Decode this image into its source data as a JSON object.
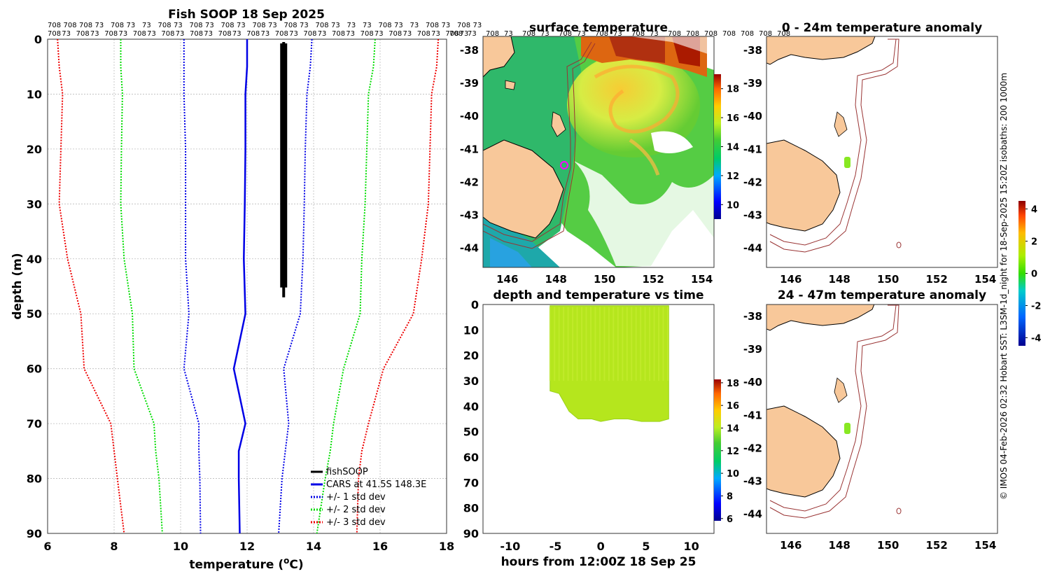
{
  "figure": {
    "credit": "© IMOS 04-Feb-2026 02:32 Hobart SST: L3SM-1d_night for 18-Sep-2025 15:20Z isobaths: 200  1000m"
  },
  "chart_data": [
    {
      "id": "profile",
      "type": "line",
      "title": "Fish SOOP 18 Sep 2025",
      "xlabel": "temperature (",
      "xlabel_sup": "o",
      "xlabel_tail": "C)",
      "ylabel": "depth (m)",
      "xlim": [
        6,
        18
      ],
      "ylim": [
        0,
        90
      ],
      "xticks": [
        6,
        8,
        10,
        12,
        14,
        16,
        18
      ],
      "yticks": [
        0,
        10,
        20,
        30,
        40,
        50,
        60,
        70,
        80,
        90
      ],
      "grid": true,
      "top_row1": [
        "708",
        "708",
        "708",
        "73",
        "708",
        "73",
        "73",
        "708",
        "73",
        "708",
        "73",
        "708",
        "73",
        "708",
        "73",
        "708",
        "73",
        "708",
        "73",
        "73",
        "73",
        "708",
        "73",
        "73",
        "708",
        "73",
        "708",
        "73"
      ],
      "top_row2": [
        "708",
        "73",
        "708",
        "73",
        "708",
        "73",
        "708",
        "73",
        "708",
        "73",
        "708",
        "73",
        "708",
        "73",
        "708",
        "73",
        "708",
        "73",
        "708",
        "73",
        "708",
        "73",
        "708",
        "73",
        "708",
        "73",
        "708",
        "73",
        "708",
        "73"
      ],
      "depths": [
        0,
        5,
        10,
        20,
        30,
        40,
        50,
        60,
        70,
        75,
        80,
        90
      ],
      "series": [
        {
          "name": "fishSOOP",
          "color": "#000000",
          "style": "solid-thick",
          "depths": [
            0,
            47
          ],
          "temps": [
            13.1,
            13.1
          ]
        },
        {
          "name": "CARS at 41.5S 148.3E",
          "color": "#0000e6",
          "style": "solid",
          "temps": [
            12.0,
            12.0,
            11.95,
            11.95,
            11.93,
            11.9,
            11.95,
            11.6,
            11.95,
            11.75,
            11.75,
            11.78
          ]
        },
        {
          "name": "+/- 1 std dev",
          "color": "#0000e6",
          "style": "dotted",
          "temps": [
            10.1,
            10.1,
            10.1,
            10.15,
            10.15,
            10.15,
            10.25,
            10.1,
            10.55,
            10.55,
            10.58,
            10.6
          ]
        },
        {
          "name": "+/- 1 std dev",
          "color": "#0000e6",
          "style": "dotted",
          "temps": [
            13.95,
            13.9,
            13.8,
            13.75,
            13.72,
            13.68,
            13.6,
            13.1,
            13.25,
            13.15,
            13.05,
            12.95
          ]
        },
        {
          "name": "+/- 2 std dev",
          "color": "#00dd00",
          "style": "dotted",
          "temps": [
            8.2,
            8.2,
            8.25,
            8.22,
            8.2,
            8.3,
            8.55,
            8.6,
            9.2,
            9.25,
            9.35,
            9.45
          ]
        },
        {
          "name": "+/- 2 std dev",
          "color": "#00dd00",
          "style": "dotted",
          "temps": [
            15.85,
            15.8,
            15.65,
            15.6,
            15.55,
            15.45,
            15.4,
            14.9,
            14.6,
            14.5,
            14.35,
            14.1
          ]
        },
        {
          "name": "+/- 3 std dev",
          "color": "#ee0000",
          "style": "dotted",
          "temps": [
            6.3,
            6.35,
            6.45,
            6.4,
            6.35,
            6.6,
            7.0,
            7.1,
            7.9,
            8.0,
            8.1,
            8.3
          ]
        },
        {
          "name": "+/- 3 std dev",
          "color": "#ee0000",
          "style": "dotted",
          "temps": [
            17.75,
            17.7,
            17.55,
            17.5,
            17.45,
            17.25,
            17.0,
            16.1,
            15.65,
            15.45,
            15.35,
            15.3
          ]
        }
      ],
      "legend": {
        "position": "bottom-right",
        "entries": [
          "fishSOOP",
          "CARS at 41.5S 148.3E",
          "+/- 1 std dev",
          "+/- 2 std dev",
          "+/- 3 std dev"
        ]
      }
    },
    {
      "id": "sst_map",
      "type": "heatmap",
      "title": "surface temperature",
      "xlim": [
        145,
        154.5
      ],
      "ylim": [
        -44.6,
        -37.6
      ],
      "xticks": [
        146,
        148,
        150,
        152,
        154
      ],
      "yticks": [
        -38,
        -39,
        -40,
        -41,
        -42,
        -43,
        -44
      ],
      "colorbar": {
        "ticks": [
          10,
          12,
          14,
          16,
          18
        ],
        "range": [
          9,
          19
        ]
      },
      "top_labels": [
        "708",
        "73",
        "708",
        "73",
        "708",
        "73",
        "708",
        "73",
        "708",
        "73",
        "708",
        "73",
        "708",
        "708",
        "708",
        "708",
        "708",
        "708",
        "708"
      ],
      "track": {
        "lon": 148.35,
        "lat_range": [
          -41.3,
          -41.6
        ]
      }
    },
    {
      "id": "depth_time",
      "type": "scatter",
      "title": "depth and temperature vs time",
      "xlabel": "hours from 12:00Z 18 Sep 25",
      "xlim": [
        -13,
        12.5
      ],
      "ylim": [
        0,
        90
      ],
      "xticks": [
        -10,
        -5,
        0,
        5,
        10
      ],
      "yticks": [
        0,
        10,
        20,
        30,
        40,
        50,
        60,
        70,
        80,
        90
      ],
      "colorbar": {
        "ticks": [
          6,
          8,
          10,
          12,
          14,
          16,
          18
        ],
        "range": [
          5.8,
          18.3
        ]
      },
      "x_range": [
        -5.6,
        7.5
      ],
      "max_depth_by_hour": [
        [
          -5.6,
          34
        ],
        [
          -4.6,
          35
        ],
        [
          -3.5,
          42
        ],
        [
          -2.5,
          45
        ],
        [
          -1,
          45
        ],
        [
          0,
          46
        ],
        [
          1.5,
          45
        ],
        [
          3,
          45
        ],
        [
          4.5,
          46
        ],
        [
          6.5,
          46
        ],
        [
          7.5,
          45
        ]
      ],
      "temperature": 13.1
    },
    {
      "id": "anom_top",
      "type": "heatmap",
      "title": "0 - 24m temperature anomaly",
      "xlim": [
        145,
        154.5
      ],
      "ylim": [
        -44.6,
        -37.6
      ],
      "xticks": [
        146,
        148,
        150,
        152,
        154
      ],
      "yticks": [
        -38,
        -39,
        -40,
        -41,
        -42,
        -43,
        -44
      ],
      "track": {
        "lon": 148.3,
        "lat_range": [
          -41.25,
          -41.5
        ],
        "anomaly": 0.3
      }
    },
    {
      "id": "anom_bottom",
      "type": "heatmap",
      "title": "24 - 47m temperature anomaly",
      "xlim": [
        145,
        154.5
      ],
      "ylim": [
        -44.6,
        -37.6
      ],
      "xticks": [
        146,
        148,
        150,
        152,
        154
      ],
      "yticks": [
        -38,
        -39,
        -40,
        -41,
        -42,
        -43,
        -44
      ],
      "track": {
        "lon": 148.3,
        "lat_range": [
          -41.3,
          -41.6
        ],
        "anomaly": 0.3
      }
    },
    {
      "id": "anom_colorbar",
      "type": "colorbar",
      "ticks": [
        -4,
        -2,
        0,
        2,
        4
      ],
      "range": [
        -4.5,
        4.5
      ]
    }
  ]
}
